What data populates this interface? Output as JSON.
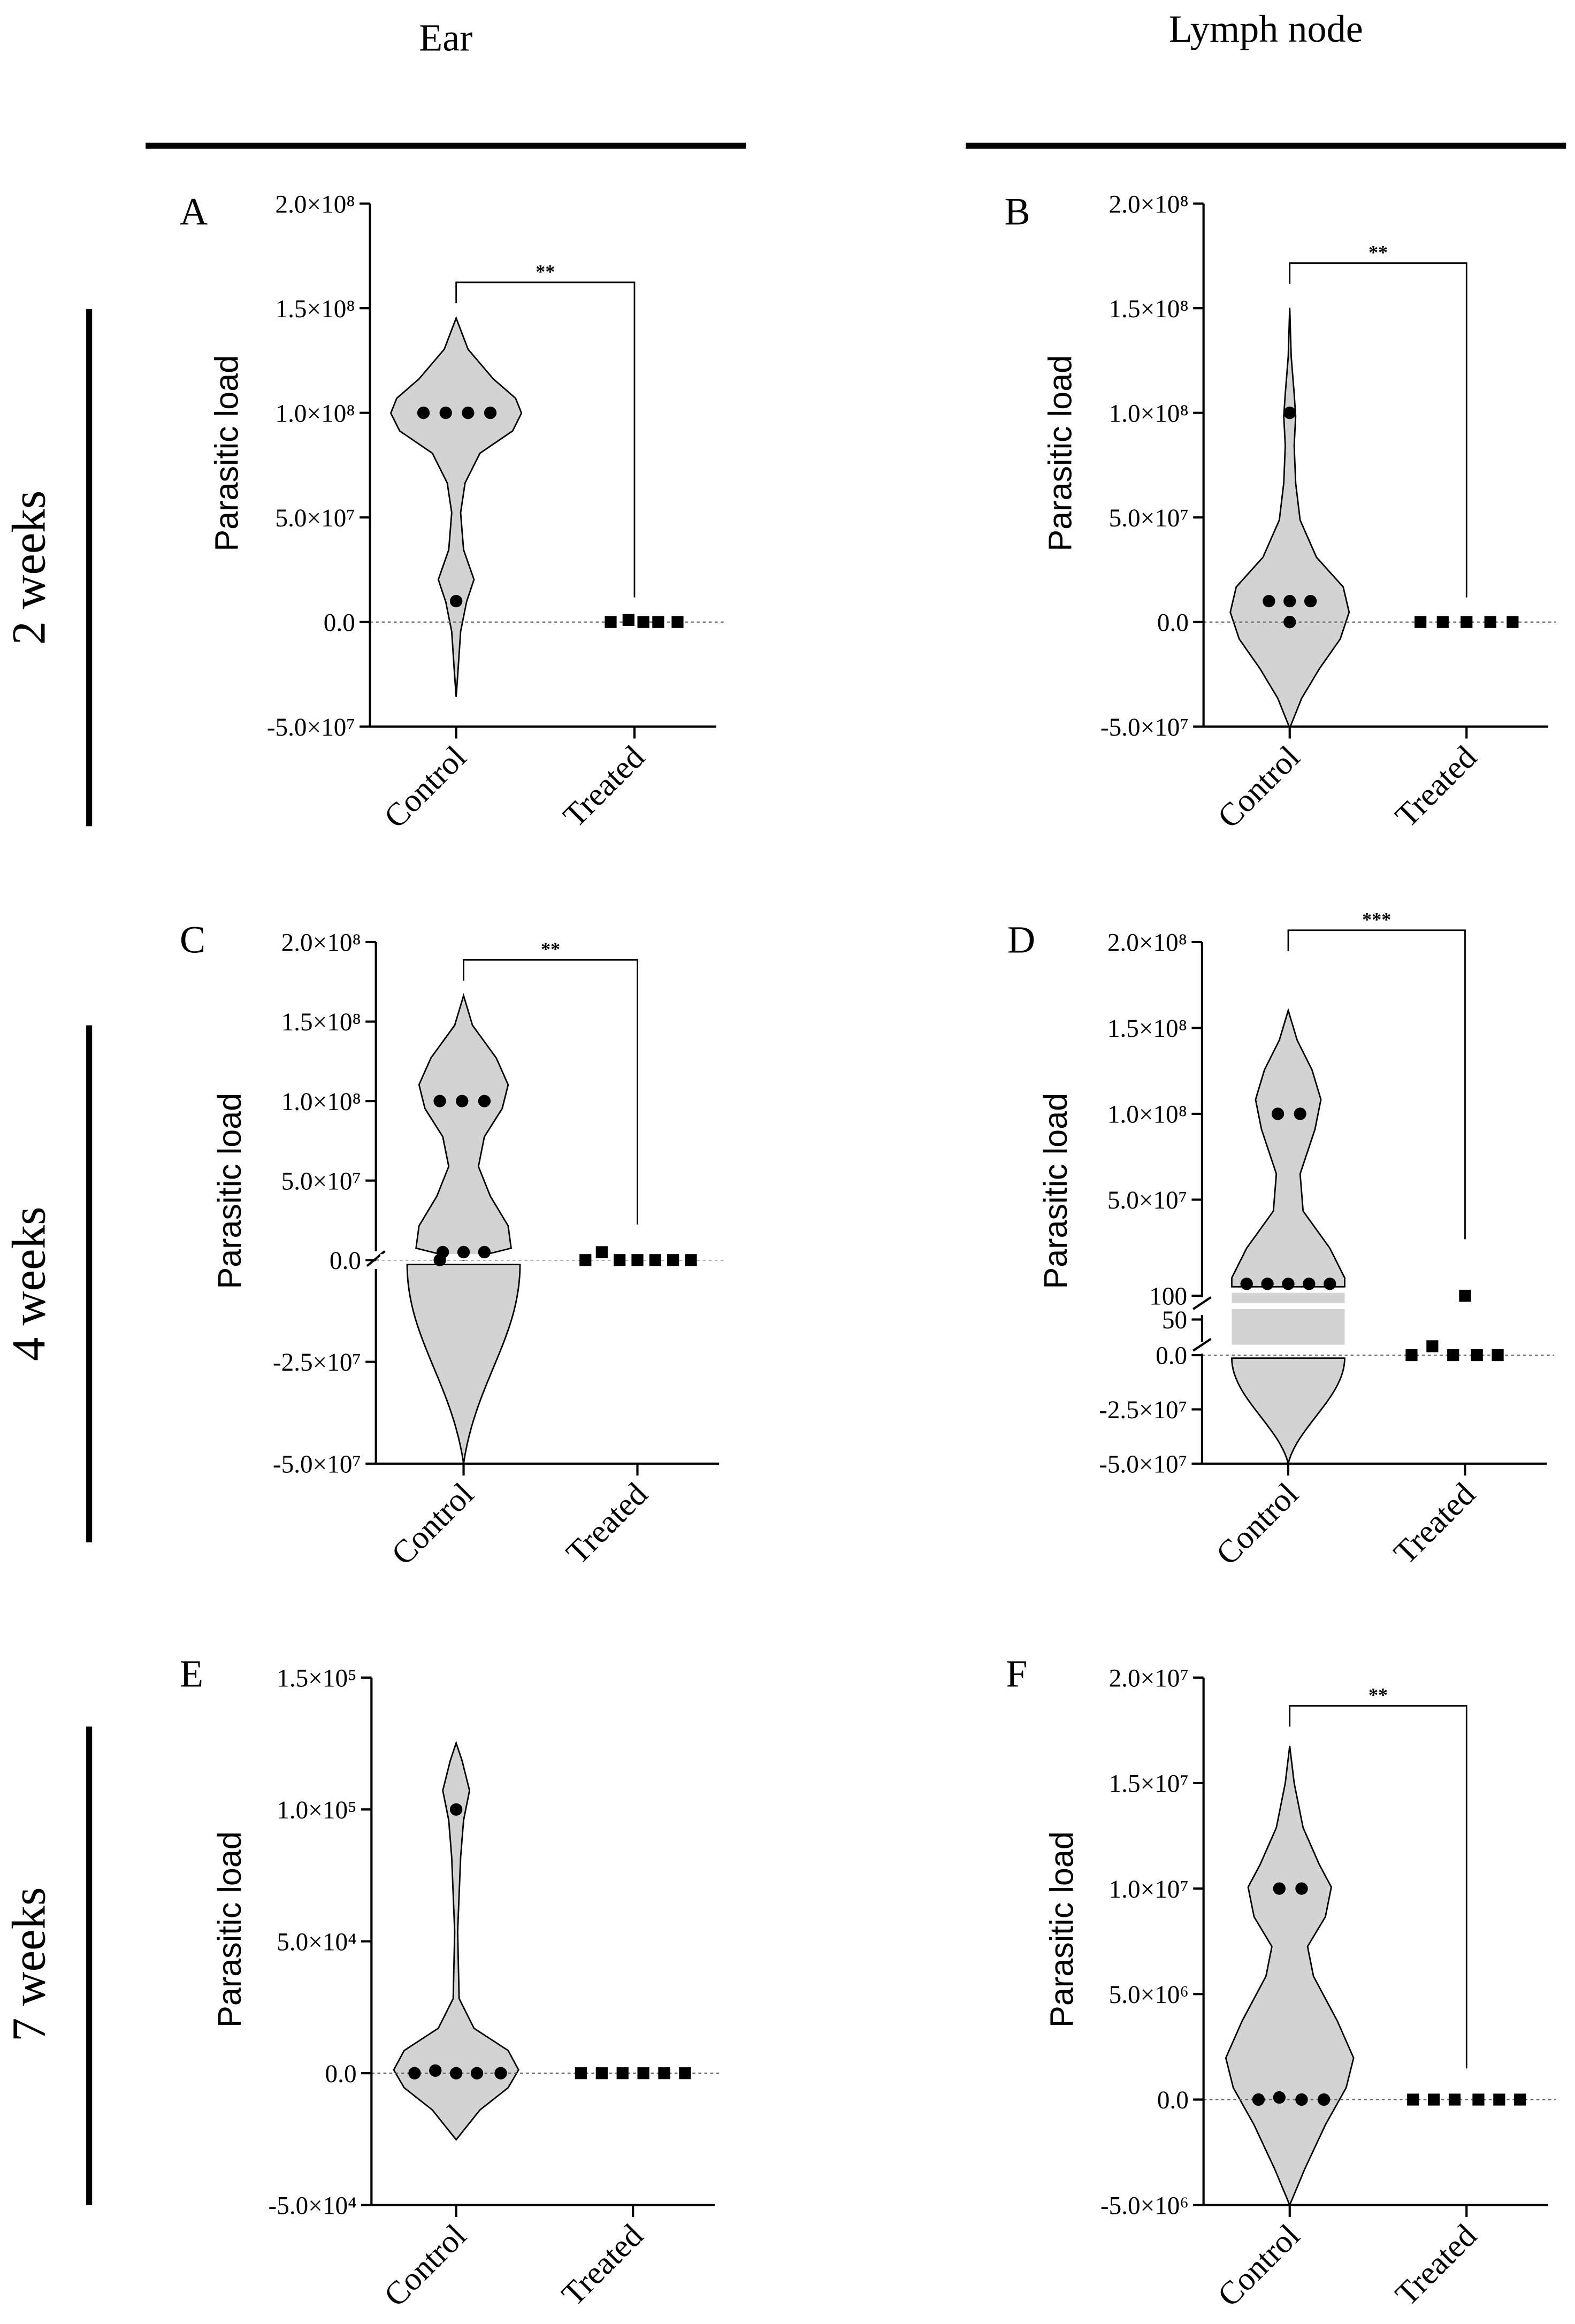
{
  "figure": {
    "column_headers": [
      "Ear",
      "Lymph node"
    ],
    "row_labels": [
      "2 weeks",
      "4 weeks",
      "7 weeks"
    ]
  },
  "chart_data": [
    {
      "panel": "A",
      "type": "violin",
      "column": "Ear",
      "row": "2 weeks",
      "ylabel": "Parasitic load",
      "categories": [
        "Control",
        "Treated"
      ],
      "ylim": [
        -50000000,
        200000000
      ],
      "yticks": [
        -50000000,
        0,
        50000000,
        100000000,
        150000000,
        200000000
      ],
      "ytick_labels": [
        "-5.0×10⁷",
        "0.0",
        "5.0×10⁷",
        "1.0×10⁸",
        "1.5×10⁸",
        "2.0×10⁸"
      ],
      "series": [
        {
          "name": "Control",
          "marker": "circle",
          "values": [
            100000000,
            100000000,
            100000000,
            100000000,
            10000000
          ]
        },
        {
          "name": "Treated",
          "marker": "square",
          "values": [
            0,
            1000000,
            0,
            0,
            0
          ]
        }
      ],
      "significance": {
        "label": "**",
        "between": [
          "Control",
          "Treated"
        ]
      }
    },
    {
      "panel": "B",
      "type": "violin",
      "column": "Lymph node",
      "row": "2 weeks",
      "ylabel": "Parasitic load",
      "categories": [
        "Control",
        "Treated"
      ],
      "ylim": [
        -50000000,
        200000000
      ],
      "yticks": [
        -50000000,
        0,
        50000000,
        100000000,
        150000000,
        200000000
      ],
      "ytick_labels": [
        "-5.0×10⁷",
        "0.0",
        "5.0×10⁷",
        "1.0×10⁸",
        "1.5×10⁸",
        "2.0×10⁸"
      ],
      "series": [
        {
          "name": "Control",
          "marker": "circle",
          "values": [
            100000000,
            10000000,
            10000000,
            10000000,
            0
          ]
        },
        {
          "name": "Treated",
          "marker": "square",
          "values": [
            0,
            0,
            0,
            0,
            0
          ]
        }
      ],
      "significance": {
        "label": "**",
        "between": [
          "Control",
          "Treated"
        ]
      }
    },
    {
      "panel": "C",
      "type": "violin",
      "column": "Ear",
      "row": "4 weeks",
      "ylabel": "Parasitic load",
      "categories": [
        "Control",
        "Treated"
      ],
      "ylim": [
        -50000000,
        200000000
      ],
      "axis_break": true,
      "yticks": [
        -50000000,
        -25000000,
        0,
        50000000,
        100000000,
        150000000,
        200000000
      ],
      "ytick_labels": [
        "-5.0×10⁷",
        "-2.5×10⁷",
        "0.0",
        "5.0×10⁷",
        "1.0×10⁸",
        "1.5×10⁸",
        "2.0×10⁸"
      ],
      "series": [
        {
          "name": "Control",
          "marker": "circle",
          "values": [
            100000000,
            100000000,
            100000000,
            5000000,
            5000000,
            5000000,
            0
          ]
        },
        {
          "name": "Treated",
          "marker": "square",
          "values": [
            0,
            5000000,
            0,
            0,
            0,
            0,
            0
          ]
        }
      ],
      "significance": {
        "label": "**",
        "between": [
          "Control",
          "Treated"
        ]
      }
    },
    {
      "panel": "D",
      "type": "violin",
      "column": "Lymph node",
      "row": "4 weeks",
      "ylabel": "Parasitic load",
      "categories": [
        "Control",
        "Treated"
      ],
      "ylim": [
        -50000000,
        200000000
      ],
      "axis_break": true,
      "yticks": [
        -50000000,
        -25000000,
        0,
        50,
        100,
        50000000,
        100000000,
        150000000,
        200000000
      ],
      "ytick_labels": [
        "-5.0×10⁷",
        "-2.5×10⁷",
        "0.0",
        "50",
        "100",
        "5.0×10⁷",
        "1.0×10⁸",
        "1.5×10⁸",
        "2.0×10⁸"
      ],
      "series": [
        {
          "name": "Control",
          "marker": "circle",
          "values": [
            100000000,
            100000000,
            1000000,
            1000000,
            1000000,
            1000000,
            1000000
          ]
        },
        {
          "name": "Treated",
          "marker": "square",
          "values": [
            0,
            10,
            0,
            100,
            0,
            0
          ]
        }
      ],
      "significance": {
        "label": "***",
        "between": [
          "Control",
          "Treated"
        ]
      }
    },
    {
      "panel": "E",
      "type": "violin",
      "column": "Ear",
      "row": "7 weeks",
      "ylabel": "Parasitic load",
      "categories": [
        "Control",
        "Treated"
      ],
      "ylim": [
        -50000,
        150000
      ],
      "yticks": [
        -50000,
        0,
        50000,
        100000,
        150000
      ],
      "ytick_labels": [
        "-5.0×10⁴",
        "0.0",
        "5.0×10⁴",
        "1.0×10⁵",
        "1.5×10⁵"
      ],
      "series": [
        {
          "name": "Control",
          "marker": "circle",
          "values": [
            100000,
            0,
            1000,
            0,
            0,
            0
          ]
        },
        {
          "name": "Treated",
          "marker": "square",
          "values": [
            0,
            0,
            0,
            0,
            0,
            0
          ]
        }
      ]
    },
    {
      "panel": "F",
      "type": "violin",
      "column": "Lymph node",
      "row": "7 weeks",
      "ylabel": "Parasitic load",
      "categories": [
        "Control",
        "Treated"
      ],
      "ylim": [
        -5000000,
        20000000
      ],
      "yticks": [
        -5000000,
        0,
        5000000,
        10000000,
        15000000,
        20000000
      ],
      "ytick_labels": [
        "-5.0×10⁶",
        "0.0",
        "5.0×10⁶",
        "1.0×10⁷",
        "1.5×10⁷",
        "2.0×10⁷"
      ],
      "series": [
        {
          "name": "Control",
          "marker": "circle",
          "values": [
            10000000,
            10000000,
            0,
            100000,
            0,
            0
          ]
        },
        {
          "name": "Treated",
          "marker": "square",
          "values": [
            0,
            0,
            0,
            0,
            0,
            0
          ]
        }
      ],
      "significance": {
        "label": "**",
        "between": [
          "Control",
          "Treated"
        ]
      }
    }
  ]
}
